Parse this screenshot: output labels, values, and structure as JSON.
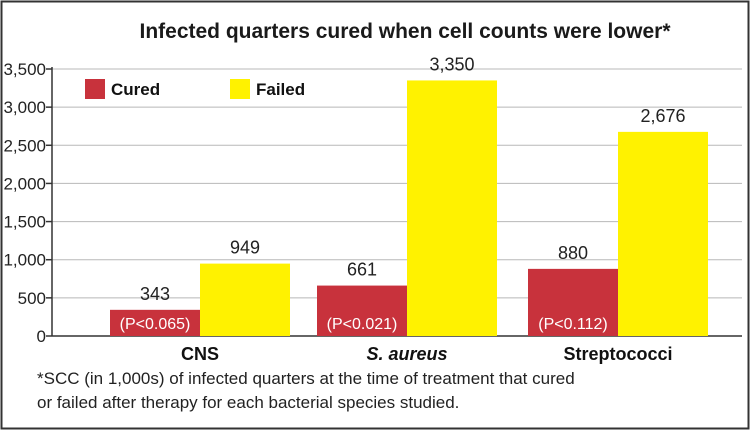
{
  "chart_data": {
    "type": "bar",
    "title": "Infected quarters cured when cell counts were lower*",
    "categories": [
      "CNS",
      "S. aureus",
      "Streptococci"
    ],
    "series": [
      {
        "name": "Cured",
        "color": "#c8323c",
        "values": [
          343,
          661,
          880
        ],
        "labels": [
          "343",
          "661",
          "880"
        ]
      },
      {
        "name": "Failed",
        "color": "#fff200",
        "values": [
          949,
          3350,
          2676
        ],
        "labels": [
          "949",
          "3,350",
          "2,676"
        ]
      }
    ],
    "p_values": [
      "(P<0.065)",
      "(P<0.021)",
      "(P<0.112)"
    ],
    "yticks": [
      0,
      500,
      1000,
      1500,
      2000,
      2500,
      3000,
      3500
    ],
    "ytick_labels": [
      "0",
      "500",
      "1,000",
      "1,500",
      "2,000",
      "2,500",
      "3,000",
      "3,500"
    ],
    "ylim": [
      0,
      3500
    ],
    "xlabel": "",
    "ylabel": "",
    "legend_position": "top-left",
    "grid": true,
    "footnote_lines": [
      "*SCC (in 1,000s) of infected quarters at the time of treatment that cured",
      "or failed after therapy for each bacterial species studied."
    ]
  }
}
